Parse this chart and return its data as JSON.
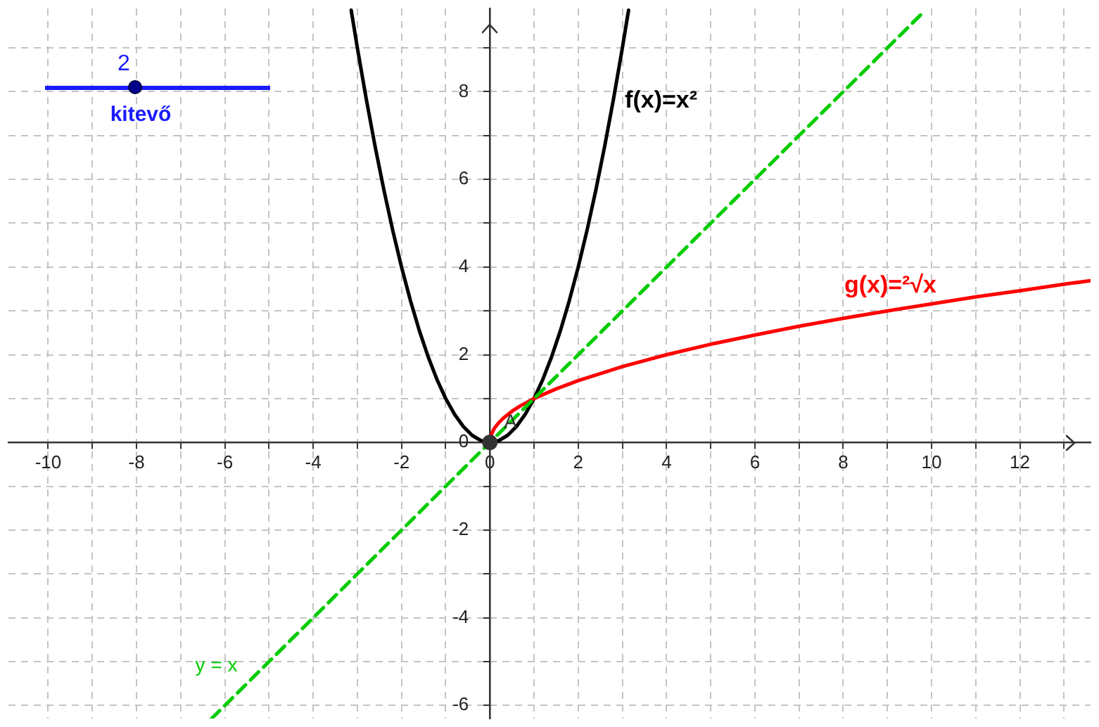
{
  "chart_data": {
    "type": "line",
    "xlim": [
      -10.9,
      13.6
    ],
    "ylim": [
      -6.3,
      9.9
    ],
    "xticks": [
      -10,
      {
        "value": -9,
        "label": null
      },
      -8,
      {
        "value": -7,
        "label": null
      },
      -6,
      {
        "value": -5,
        "label": null
      },
      -4,
      {
        "value": -3,
        "label": null
      },
      -2,
      {
        "value": -1,
        "label": null
      },
      0,
      {
        "value": 1,
        "label": null
      },
      2,
      {
        "value": 3,
        "label": null
      },
      4,
      {
        "value": 5,
        "label": null
      },
      6,
      {
        "value": 7,
        "label": null
      },
      8,
      {
        "value": 9,
        "label": null
      },
      10,
      {
        "value": 11,
        "label": null
      },
      12,
      {
        "value": 13,
        "label": null
      }
    ],
    "yticks": [
      -6,
      {
        "value": -5,
        "label": null
      },
      -4,
      {
        "value": -3,
        "label": null
      },
      -2,
      {
        "value": -1,
        "label": null
      },
      0,
      {
        "value": 1,
        "label": null
      },
      2,
      {
        "value": 3,
        "label": null
      },
      4,
      {
        "value": 5,
        "label": null
      },
      6,
      {
        "value": 7,
        "label": null
      },
      8,
      {
        "value": 9,
        "label": null
      }
    ],
    "grid": true,
    "marker": "none",
    "annotations": [
      "2",
      "kitevő"
    ],
    "series": [
      {
        "name": "f(x)=x²",
        "color": "#000000",
        "x": [
          -3.14,
          -3,
          -2.8,
          -2.6,
          -2.4,
          -2.2,
          -2,
          -1.8,
          -1.6,
          -1.4,
          -1.2,
          -1,
          -0.8,
          -0.6,
          -0.4,
          -0.2,
          0,
          0.2,
          0.4,
          0.6,
          0.8,
          1,
          1.2,
          1.4,
          1.6,
          1.8,
          2,
          2.2,
          2.4,
          2.6,
          2.8,
          3,
          3.14
        ],
        "values": [
          9.86,
          9,
          7.84,
          6.76,
          5.76,
          4.84,
          4,
          3.24,
          2.56,
          1.96,
          1.44,
          1,
          0.64,
          0.36,
          0.16,
          0.04,
          0,
          0.04,
          0.16,
          0.36,
          0.64,
          1,
          1.44,
          1.96,
          2.56,
          3.24,
          4,
          4.84,
          5.76,
          6.76,
          7.84,
          9,
          9.86
        ]
      },
      {
        "name": "g(x)=²√x",
        "color": "#ff0000",
        "x": [
          0,
          0.02,
          0.05,
          0.1,
          0.2,
          0.3,
          0.5,
          0.7,
          1,
          1.5,
          2,
          3,
          4,
          5,
          6,
          7,
          8,
          9,
          10,
          11,
          12,
          13,
          13.6
        ],
        "values": [
          0,
          0.14,
          0.22,
          0.32,
          0.45,
          0.55,
          0.71,
          0.84,
          1,
          1.22,
          1.41,
          1.73,
          2,
          2.24,
          2.45,
          2.65,
          2.83,
          3,
          3.16,
          3.32,
          3.46,
          3.61,
          3.69
        ]
      },
      {
        "name": "y = x",
        "color": "#00cc00",
        "line_style": "dashed",
        "x": [
          -6.3,
          9.8
        ],
        "values": [
          -6.3,
          9.8
        ]
      },
      {
        "type": "scatter",
        "name": "A",
        "color": "#333333",
        "marker": "circle",
        "x": [
          0
        ],
        "values": [
          0
        ]
      }
    ]
  }
}
